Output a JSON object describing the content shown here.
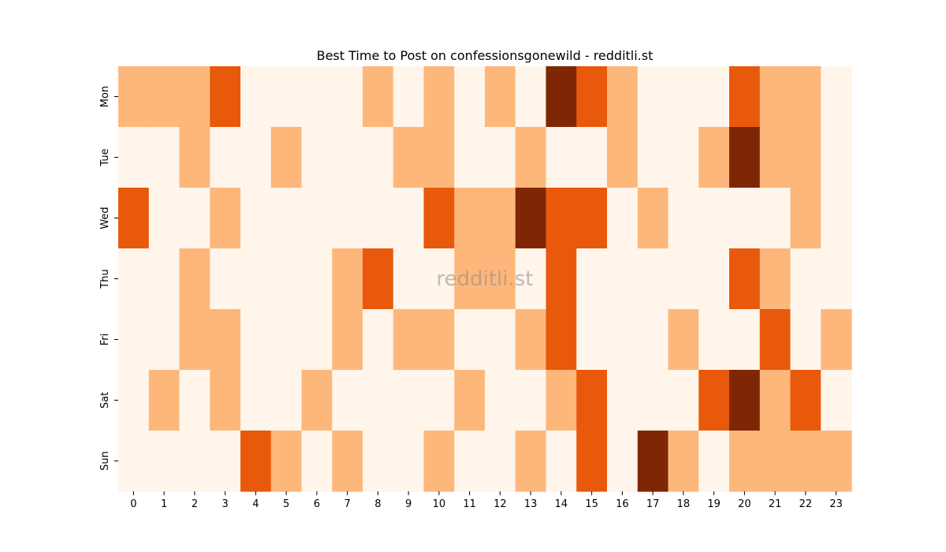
{
  "chart_data": {
    "type": "heatmap",
    "title": "Best Time to Post on confessionsgonewild - redditli.st",
    "watermark": "redditli.st",
    "x_categories": [
      "0",
      "1",
      "2",
      "3",
      "4",
      "5",
      "6",
      "7",
      "8",
      "9",
      "10",
      "11",
      "12",
      "13",
      "14",
      "15",
      "16",
      "17",
      "18",
      "19",
      "20",
      "21",
      "22",
      "23"
    ],
    "y_categories": [
      "Mon",
      "Tue",
      "Wed",
      "Thu",
      "Fri",
      "Sat",
      "Sun"
    ],
    "value_levels": [
      0,
      1,
      2,
      3
    ],
    "colors": [
      "#fff5eb",
      "#fdb77b",
      "#e8590c",
      "#7f2704"
    ],
    "values": [
      [
        1,
        1,
        1,
        2,
        0,
        0,
        0,
        0,
        1,
        0,
        1,
        0,
        1,
        0,
        3,
        2,
        1,
        0,
        0,
        0,
        2,
        1,
        1,
        0
      ],
      [
        0,
        0,
        1,
        0,
        0,
        1,
        0,
        0,
        0,
        1,
        1,
        0,
        0,
        1,
        0,
        0,
        1,
        0,
        0,
        1,
        3,
        1,
        1,
        0
      ],
      [
        2,
        0,
        0,
        1,
        0,
        0,
        0,
        0,
        0,
        0,
        2,
        1,
        1,
        3,
        2,
        2,
        0,
        1,
        0,
        0,
        0,
        0,
        1,
        0
      ],
      [
        0,
        0,
        1,
        0,
        0,
        0,
        0,
        1,
        2,
        0,
        0,
        1,
        1,
        0,
        2,
        0,
        0,
        0,
        0,
        0,
        2,
        1,
        0,
        0
      ],
      [
        0,
        0,
        1,
        1,
        0,
        0,
        0,
        1,
        0,
        1,
        1,
        0,
        0,
        1,
        2,
        0,
        0,
        0,
        1,
        0,
        0,
        2,
        0,
        1
      ],
      [
        0,
        1,
        0,
        1,
        0,
        0,
        1,
        0,
        0,
        0,
        0,
        1,
        0,
        0,
        1,
        2,
        0,
        0,
        0,
        2,
        3,
        1,
        2,
        0
      ],
      [
        0,
        0,
        0,
        0,
        2,
        1,
        0,
        1,
        0,
        0,
        1,
        0,
        0,
        1,
        0,
        2,
        0,
        3,
        1,
        0,
        1,
        1,
        1,
        1
      ]
    ],
    "legend": "none",
    "grid": false
  }
}
